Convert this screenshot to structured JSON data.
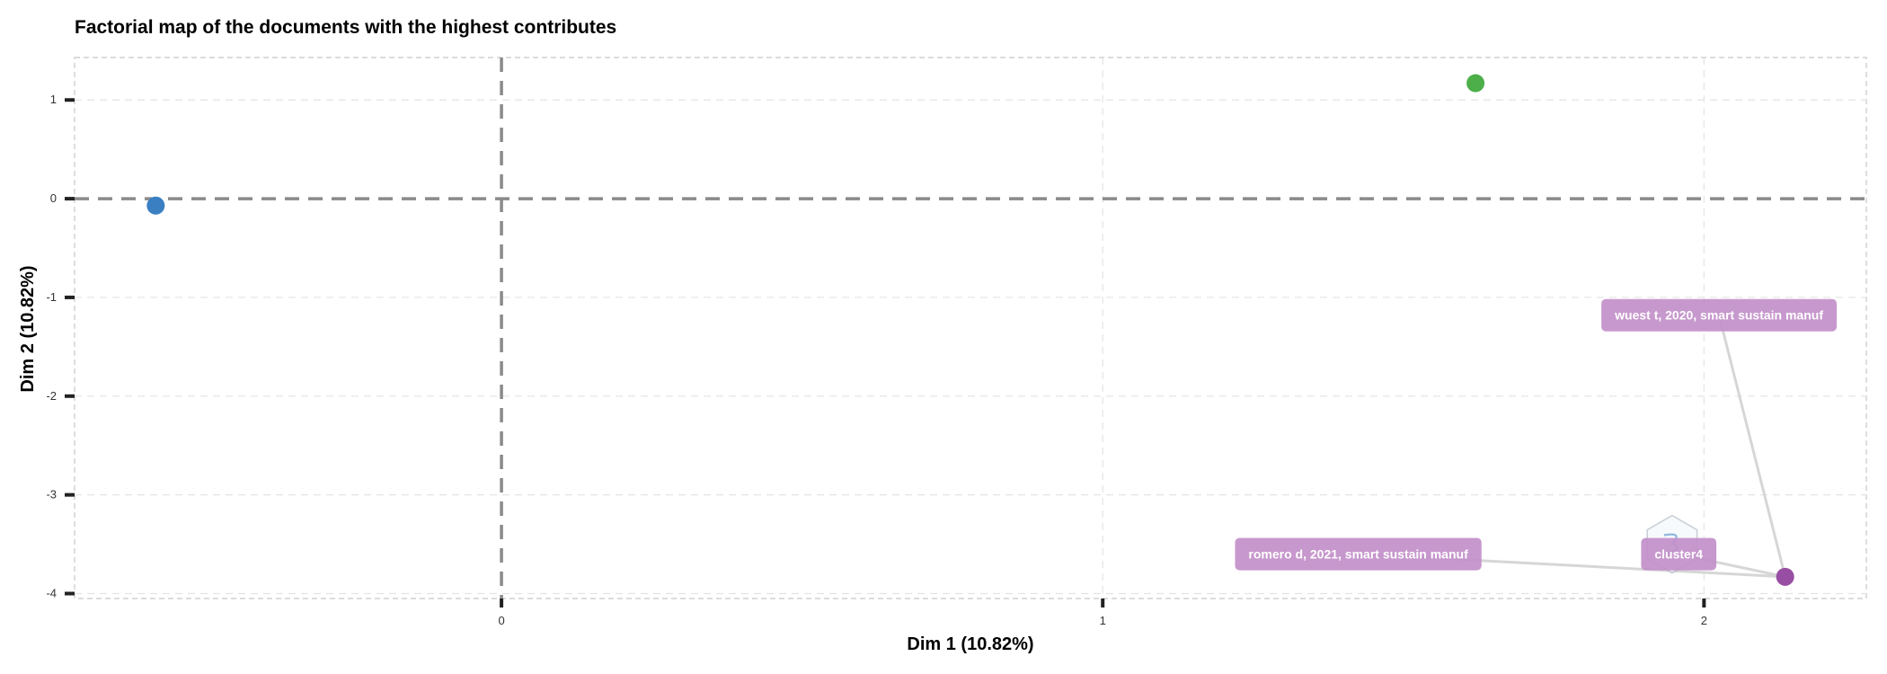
{
  "chart_data": {
    "type": "scatter",
    "title": "Factorial map of the documents with the highest contributes",
    "xlabel": "Dim 1 (10.82%)",
    "ylabel": "Dim 2 (10.82%)",
    "xlim": [
      -0.71,
      2.27
    ],
    "ylim": [
      -4.05,
      1.43
    ],
    "x_ticks": [
      0,
      1,
      2
    ],
    "y_ticks": [
      -4,
      -3,
      -2,
      -1,
      0,
      1
    ],
    "grid": true,
    "reference_lines": {
      "x": 0,
      "y": 0
    },
    "points": [
      {
        "x": -0.575,
        "y": -0.07,
        "color": "#3a7fc2",
        "label": ""
      },
      {
        "x": 1.62,
        "y": 1.17,
        "color": "#4caf4a",
        "label": ""
      },
      {
        "x": 2.135,
        "y": -3.83,
        "color": "#984ea3",
        "label": ""
      }
    ],
    "labels": [
      {
        "text": "wuest t, 2020, smart sustain manuf",
        "x": 2.025,
        "y": -1.18,
        "point_x": 2.135,
        "point_y": -3.83,
        "color": "#c28fc9"
      },
      {
        "text": "romero d, 2021, smart sustain manuf",
        "x": 1.425,
        "y": -3.6,
        "point_x": 2.135,
        "point_y": -3.83,
        "color": "#c28fc9"
      },
      {
        "text": "cluster4",
        "x": 1.958,
        "y": -3.6,
        "point_x": 2.135,
        "point_y": -3.83,
        "color": "#c28fc9"
      }
    ]
  }
}
